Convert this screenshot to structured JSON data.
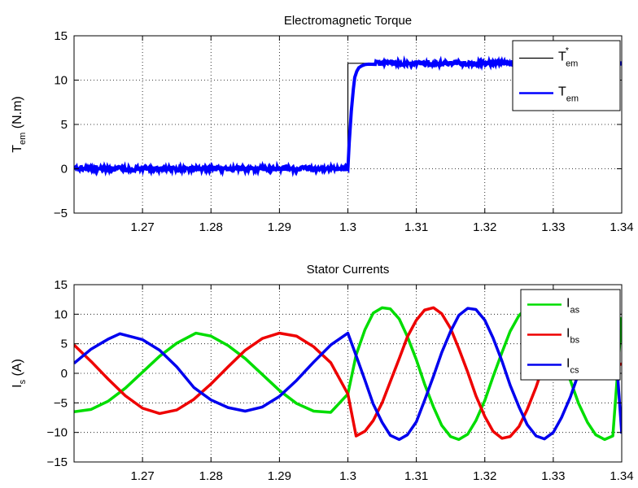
{
  "chart_data": [
    {
      "type": "line",
      "title": "Electromagnetic Torque",
      "ylabel": {
        "main": "T",
        "sub": "em",
        "suffix": " (N.m)"
      },
      "xlim": [
        1.26,
        1.34
      ],
      "ylim": [
        -5,
        15
      ],
      "xticks": [
        1.27,
        1.28,
        1.29,
        1.3,
        1.31,
        1.32,
        1.33,
        1.34
      ],
      "yticks": [
        -5,
        0,
        5,
        10,
        15
      ],
      "xtick_labels": [
        "1.27",
        "1.28",
        "1.29",
        "1.3",
        "1.31",
        "1.32",
        "1.33",
        "1.34"
      ],
      "ytick_labels": [
        "−5",
        "0",
        "5",
        "10",
        "15"
      ],
      "grid": true,
      "legend": "top-right",
      "series": [
        {
          "legend": {
            "main": "T",
            "sup": "*",
            "sub": "em"
          },
          "color": "#000000",
          "width": 1.2,
          "x": [
            1.26,
            1.3,
            1.3,
            1.34
          ],
          "y": [
            0,
            0,
            11.9,
            11.9
          ]
        },
        {
          "legend": {
            "main": "T",
            "sub": "em"
          },
          "color": "#0000ff",
          "width": 4,
          "noise": 0.25,
          "x": [
            1.26,
            1.3,
            1.3002,
            1.3005,
            1.3008,
            1.301,
            1.3013,
            1.3016,
            1.302,
            1.3025,
            1.303,
            1.304,
            1.306,
            1.34
          ],
          "y": [
            0,
            0,
            3,
            6.5,
            9,
            10.3,
            11,
            11.4,
            11.6,
            11.75,
            11.8,
            11.85,
            11.9,
            11.9
          ]
        }
      ]
    },
    {
      "type": "line",
      "title": "Stator Currents",
      "ylabel": {
        "main": "I",
        "sub": "s",
        "suffix": " (A)"
      },
      "xlim": [
        1.26,
        1.34
      ],
      "ylim": [
        -15,
        15
      ],
      "xticks": [
        1.27,
        1.28,
        1.29,
        1.3,
        1.31,
        1.32,
        1.33,
        1.34
      ],
      "yticks": [
        -15,
        -10,
        -5,
        0,
        5,
        10,
        15
      ],
      "xtick_labels": [
        "1.27",
        "1.28",
        "1.29",
        "1.3",
        "1.31",
        "1.32",
        "1.33",
        "1.34"
      ],
      "ytick_labels": [
        "−15",
        "−10",
        "−5",
        "0",
        "5",
        "10",
        "15"
      ],
      "grid": true,
      "legend": "top-right",
      "series": [
        {
          "legend": {
            "main": "I",
            "sub": "as"
          },
          "color": "#00dd00",
          "width": 3.5,
          "x": [
            1.26,
            1.2625,
            1.265,
            1.2675,
            1.27,
            1.2725,
            1.275,
            1.2778,
            1.28,
            1.2825,
            1.285,
            1.2875,
            1.29,
            1.2925,
            1.295,
            1.2975,
            1.3,
            1.3,
            1.3012,
            1.3025,
            1.3037,
            1.305,
            1.3062,
            1.3075,
            1.3087,
            1.31,
            1.3112,
            1.3125,
            1.3137,
            1.315,
            1.3162,
            1.3175,
            1.3187,
            1.32,
            1.3212,
            1.3225,
            1.3237,
            1.325,
            1.3262,
            1.3275,
            1.3287,
            1.33,
            1.3312,
            1.3325,
            1.3337,
            1.335,
            1.3362,
            1.3375,
            1.3387,
            1.34
          ],
          "y": [
            -6.5,
            -6.1,
            -4.7,
            -2.5,
            0.2,
            2.9,
            5.1,
            6.8,
            6.3,
            4.7,
            2.5,
            -0.2,
            -2.9,
            -5.1,
            -6.4,
            -6.6,
            -3.5,
            -3.5,
            3.1,
            7.4,
            10.2,
            11.1,
            10.9,
            9.2,
            6.2,
            2.3,
            -1.8,
            -5.7,
            -8.8,
            -10.7,
            -11.2,
            -10.3,
            -8.0,
            -4.6,
            -0.6,
            3.5,
            7.1,
            9.8,
            11.1,
            11.0,
            9.5,
            6.7,
            2.9,
            -1.2,
            -5.1,
            -8.3,
            -10.4,
            -11.2,
            -10.6,
            9.5
          ]
        },
        {
          "legend": {
            "main": "I",
            "sub": "bs"
          },
          "color": "#ee0000",
          "width": 3.5,
          "x": [
            1.26,
            1.2625,
            1.265,
            1.2675,
            1.27,
            1.2725,
            1.275,
            1.2775,
            1.28,
            1.2825,
            1.285,
            1.2875,
            1.29,
            1.2925,
            1.295,
            1.2975,
            1.3,
            1.3,
            1.3012,
            1.3025,
            1.3037,
            1.305,
            1.3062,
            1.3075,
            1.3087,
            1.31,
            1.3112,
            1.3125,
            1.3137,
            1.315,
            1.3162,
            1.3175,
            1.3187,
            1.32,
            1.3212,
            1.3225,
            1.3237,
            1.325,
            1.3262,
            1.3275,
            1.3287,
            1.33,
            1.3312,
            1.3325,
            1.3337,
            1.335,
            1.3362,
            1.3375,
            1.3387,
            1.34
          ],
          "y": [
            4.8,
            2.0,
            -1.0,
            -3.8,
            -5.9,
            -6.8,
            -6.2,
            -4.4,
            -1.8,
            1.1,
            3.9,
            5.9,
            6.8,
            6.3,
            4.5,
            1.8,
            -3.5,
            -3.5,
            -10.6,
            -9.8,
            -8.0,
            -5.0,
            -1.4,
            2.5,
            6.2,
            9.0,
            10.7,
            11.1,
            10.1,
            7.6,
            4.2,
            0.2,
            -3.8,
            -7.3,
            -9.8,
            -11.0,
            -10.7,
            -9.0,
            -6.1,
            -2.3,
            1.8,
            5.6,
            8.6,
            10.5,
            11.2,
            10.5,
            8.3,
            5.0,
            1.0,
            1.6
          ]
        },
        {
          "legend": {
            "main": "I",
            "sub": "cs"
          },
          "color": "#0000ee",
          "width": 3.5,
          "x": [
            1.26,
            1.2625,
            1.265,
            1.2667,
            1.27,
            1.2725,
            1.275,
            1.2775,
            1.28,
            1.2825,
            1.285,
            1.2875,
            1.29,
            1.2925,
            1.295,
            1.2975,
            1.3,
            1.3,
            1.3012,
            1.3025,
            1.3037,
            1.305,
            1.3062,
            1.3075,
            1.3087,
            1.31,
            1.3112,
            1.3125,
            1.3137,
            1.315,
            1.3162,
            1.3175,
            1.3187,
            1.32,
            1.3212,
            1.3225,
            1.3237,
            1.325,
            1.3262,
            1.3275,
            1.3287,
            1.33,
            1.3312,
            1.3325,
            1.3337,
            1.335,
            1.3362,
            1.3375,
            1.3387,
            1.34
          ],
          "y": [
            1.7,
            4.1,
            5.8,
            6.7,
            5.7,
            3.9,
            1.1,
            -2.4,
            -4.5,
            -5.8,
            -6.4,
            -5.7,
            -3.9,
            -1.2,
            1.9,
            4.8,
            6.8,
            6.8,
            3.0,
            -1.2,
            -5.2,
            -8.3,
            -10.5,
            -11.2,
            -10.4,
            -8.2,
            -4.6,
            -0.5,
            3.5,
            7.1,
            9.8,
            11.0,
            10.8,
            9.0,
            6.0,
            2.1,
            -2.0,
            -5.7,
            -8.7,
            -10.6,
            -11.1,
            -10.0,
            -7.5,
            -4.0,
            0.0,
            3.9,
            7.4,
            10.0,
            11.2,
            -10.2
          ]
        }
      ]
    }
  ]
}
